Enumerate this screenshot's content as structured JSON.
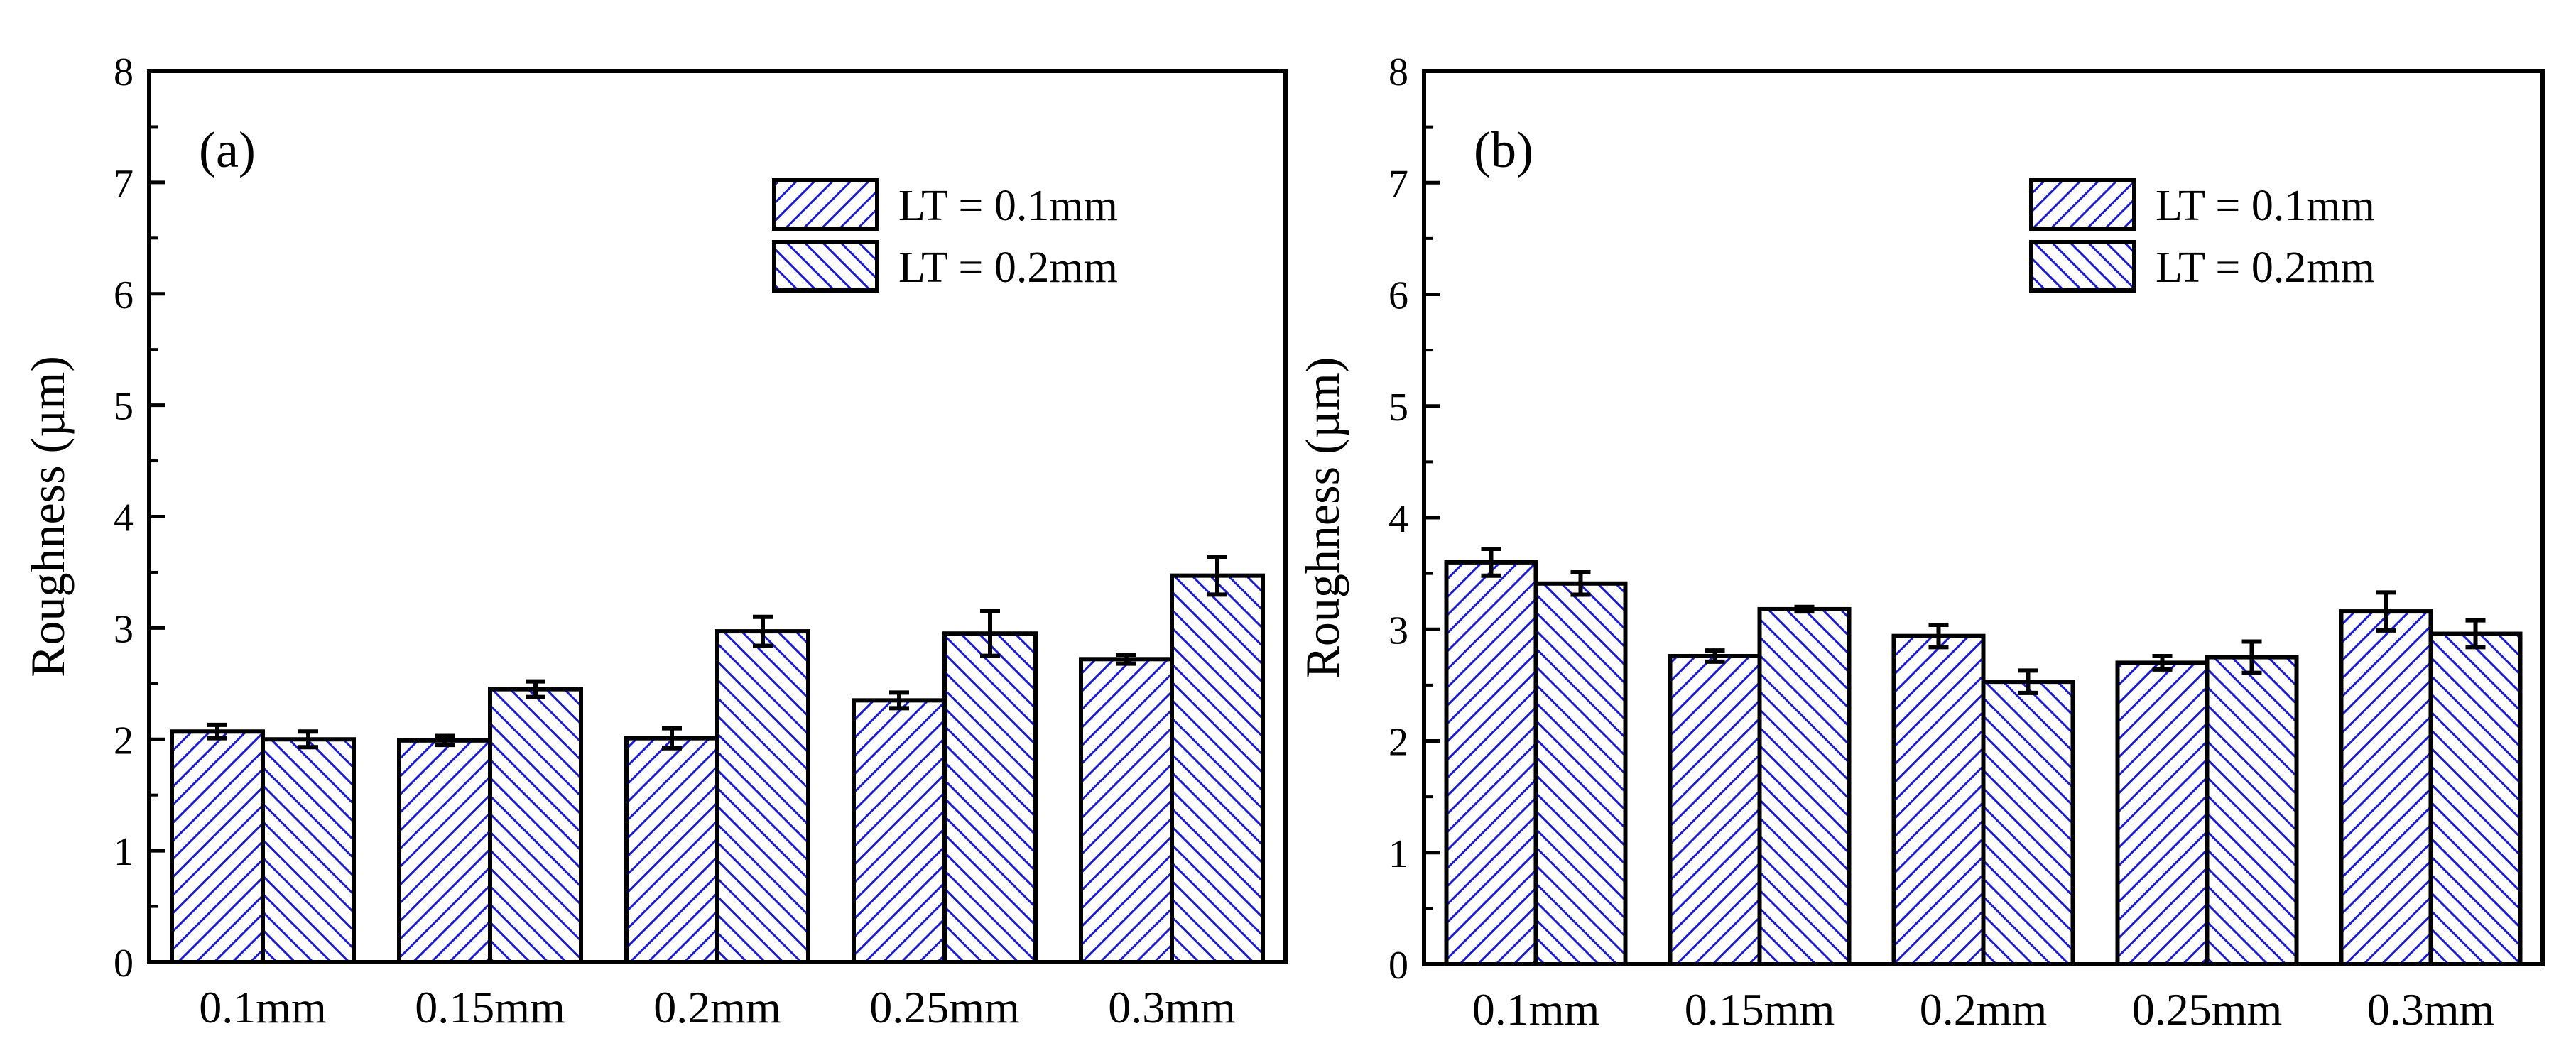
{
  "chart_data": [
    {
      "type": "bar",
      "panel_label": "(a)",
      "ylabel": "Roughness (µm)",
      "xlabel": "",
      "ylim": [
        0,
        8
      ],
      "yticks": [
        "0",
        "1",
        "2",
        "3",
        "4",
        "5",
        "6",
        "7",
        "8"
      ],
      "categories": [
        "0.1mm",
        "0.15mm",
        "0.2mm",
        "0.25mm",
        "0.3mm"
      ],
      "series": [
        {
          "name": "LT = 0.1mm",
          "pattern": "hatch-forward",
          "values": [
            2.07,
            1.99,
            2.01,
            2.35,
            2.72
          ],
          "errors": [
            0.06,
            0.04,
            0.09,
            0.07,
            0.04
          ]
        },
        {
          "name": "LT = 0.2mm",
          "pattern": "hatch-back",
          "values": [
            2.0,
            2.45,
            2.97,
            2.95,
            3.47
          ],
          "errors": [
            0.07,
            0.07,
            0.13,
            0.2,
            0.17
          ]
        }
      ],
      "legend_position": "top-right"
    },
    {
      "type": "bar",
      "panel_label": "(b)",
      "ylabel": "Roughness (µm)",
      "xlabel": "",
      "ylim": [
        0,
        8
      ],
      "yticks": [
        "0",
        "1",
        "2",
        "3",
        "4",
        "5",
        "6",
        "7",
        "8"
      ],
      "categories": [
        "0.1mm",
        "0.15mm",
        "0.2mm",
        "0.25mm",
        "0.3mm"
      ],
      "series": [
        {
          "name": "LT = 0.1mm",
          "pattern": "hatch-forward",
          "values": [
            3.6,
            2.76,
            2.94,
            2.7,
            3.16
          ],
          "errors": [
            0.12,
            0.05,
            0.1,
            0.06,
            0.17
          ]
        },
        {
          "name": "LT = 0.2mm",
          "pattern": "hatch-back",
          "values": [
            3.41,
            3.18,
            2.53,
            2.75,
            2.96
          ],
          "errors": [
            0.1,
            0.02,
            0.1,
            0.14,
            0.12
          ]
        }
      ],
      "legend_position": "top-right"
    }
  ],
  "colors": {
    "hatch": "#1a1adc",
    "outline": "#000000",
    "background": "#ffffff"
  }
}
